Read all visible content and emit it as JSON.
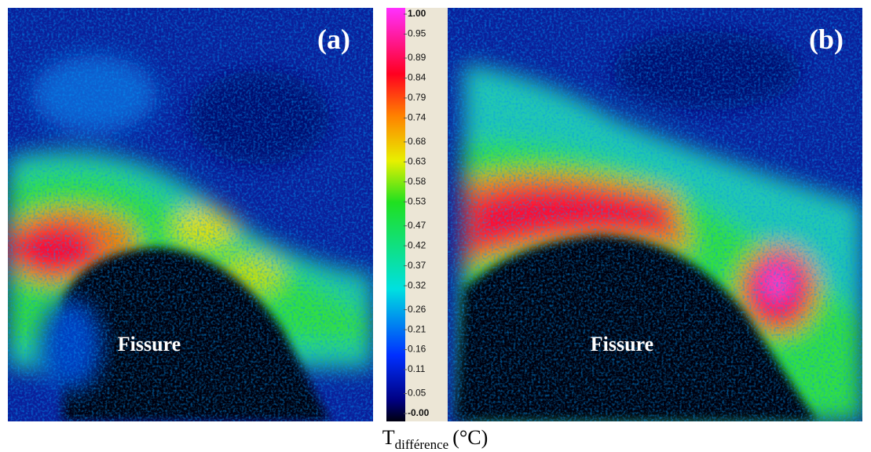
{
  "panels": [
    {
      "label": "(a)",
      "annotation": "Fissure"
    },
    {
      "label": "(b)",
      "annotation": "Fissure"
    }
  ],
  "colorbar": {
    "ticks": [
      {
        "value": 1,
        "label": "1.00"
      },
      {
        "value": 0.95,
        "label": "0.95"
      },
      {
        "value": 0.89,
        "label": "0.89"
      },
      {
        "value": 0.84,
        "label": "0.84"
      },
      {
        "value": 0.79,
        "label": "0.79"
      },
      {
        "value": 0.74,
        "label": "0.74"
      },
      {
        "value": 0.68,
        "label": "0.68"
      },
      {
        "value": 0.63,
        "label": "0.63"
      },
      {
        "value": 0.58,
        "label": "0.58"
      },
      {
        "value": 0.53,
        "label": "0.53"
      },
      {
        "value": 0.47,
        "label": "0.47"
      },
      {
        "value": 0.42,
        "label": "0.42"
      },
      {
        "value": 0.37,
        "label": "0.37"
      },
      {
        "value": 0.32,
        "label": "0.32"
      },
      {
        "value": 0.26,
        "label": "0.26"
      },
      {
        "value": 0.21,
        "label": "0.21"
      },
      {
        "value": 0.16,
        "label": "0.16"
      },
      {
        "value": 0.11,
        "label": "0.11"
      },
      {
        "value": 0.05,
        "label": "0.05"
      },
      {
        "value": 0,
        "label": "-0.00"
      }
    ]
  },
  "caption": {
    "symbol": "T",
    "subscript": "différence",
    "unit": "(°C)"
  }
}
